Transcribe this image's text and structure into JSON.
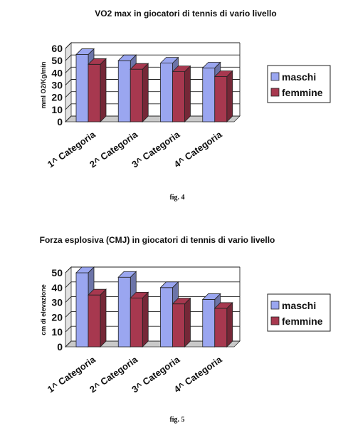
{
  "chart_data": [
    {
      "type": "bar",
      "title": "VO2 max in giocatori di tennis di vario livello",
      "ylabel": "mml O2/Kg/min",
      "xlabel": "",
      "categories": [
        "1^ Categoria",
        "2^ Categoria",
        "3^ Categoria",
        "4^ Categoria"
      ],
      "series": [
        {
          "name": "maschi",
          "color": "#9aa6f0",
          "values": [
            55,
            50,
            48,
            44
          ]
        },
        {
          "name": "femmine",
          "color": "#a7384f",
          "values": [
            47,
            43,
            41,
            37
          ]
        }
      ],
      "ylim": [
        0,
        60
      ],
      "yticks": [
        0,
        10,
        20,
        30,
        40,
        50,
        60
      ],
      "grid": true,
      "legend": "right",
      "caption": "fig. 4"
    },
    {
      "type": "bar",
      "title": "Forza esplosiva (CMJ)  in giocatori di tennis di vario livello",
      "ylabel": "cm   di elevazione",
      "xlabel": "",
      "categories": [
        "1^ Categoria",
        "2^ Categoria",
        "3^ Categoria",
        "4^ Categoria"
      ],
      "series": [
        {
          "name": "maschi",
          "color": "#9aa6f0",
          "values": [
            50,
            47,
            40,
            32
          ]
        },
        {
          "name": "femmine",
          "color": "#a7384f",
          "values": [
            35,
            33,
            29,
            26
          ]
        }
      ],
      "ylim": [
        0,
        50
      ],
      "yticks": [
        0,
        10,
        20,
        30,
        40,
        50
      ],
      "grid": true,
      "legend": "right",
      "caption": "fig. 5"
    }
  ]
}
